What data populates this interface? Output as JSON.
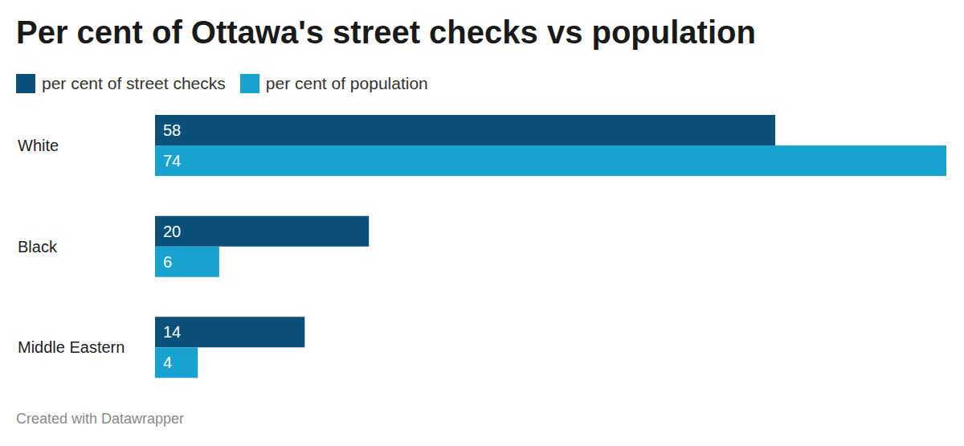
{
  "chart_data": {
    "type": "bar",
    "title": "Per cent of Ottawa's street checks vs population",
    "footer": "Created with Datawrapper",
    "orientation": "horizontal",
    "categories": [
      "White",
      "Black",
      "Middle Eastern"
    ],
    "series": [
      {
        "name": "per cent of street checks",
        "color": "#0a5078",
        "values": [
          58,
          20,
          14
        ]
      },
      {
        "name": "per cent of population",
        "color": "#18a2cf",
        "values": [
          74,
          6,
          4
        ]
      }
    ],
    "data_labels": true,
    "tick_labels": false,
    "legend": "top-left",
    "grid": false
  }
}
